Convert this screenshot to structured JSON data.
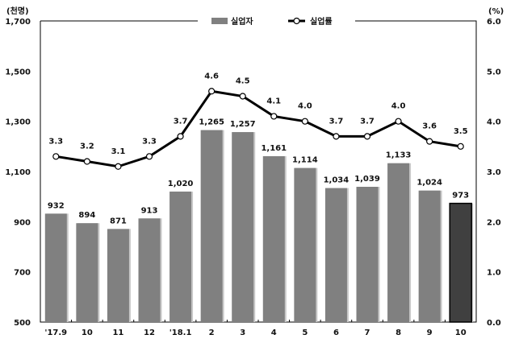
{
  "chart_data": {
    "type": "bar+line",
    "title": "",
    "y_left_unit": "(천명)",
    "y_right_unit": "(%)",
    "categories": [
      "'17.9",
      "10",
      "11",
      "12",
      "'18.1",
      "2",
      "3",
      "4",
      "5",
      "6",
      "7",
      "8",
      "9",
      "10"
    ],
    "series": [
      {
        "name": "실업자",
        "type": "bar",
        "axis": "left",
        "color": "#808080",
        "highlight_last_color": "#404040",
        "values": [
          932,
          894,
          871,
          913,
          1020,
          1265,
          1257,
          1161,
          1114,
          1034,
          1039,
          1133,
          1024,
          973
        ],
        "labels": [
          "932",
          "894",
          "871",
          "913",
          "1,020",
          "1,265",
          "1,257",
          "1,161",
          "1,114",
          "1,034",
          "1,039",
          "1,133",
          "1,024",
          "973"
        ]
      },
      {
        "name": "실업률",
        "type": "line",
        "axis": "right",
        "color": "#000000",
        "values": [
          3.3,
          3.2,
          3.1,
          3.3,
          3.7,
          4.6,
          4.5,
          4.1,
          4.0,
          3.7,
          3.7,
          4.0,
          3.6,
          3.5
        ],
        "labels": [
          "3.3",
          "3.2",
          "3.1",
          "3.3",
          "3.7",
          "4.6",
          "4.5",
          "4.1",
          "4.0",
          "3.7",
          "3.7",
          "4.0",
          "3.6",
          "3.5"
        ]
      }
    ],
    "y_left": {
      "lim": [
        500,
        1700
      ],
      "ticks": [
        "500",
        "700",
        "900",
        "1,100",
        "1,300",
        "1,500",
        "1,700"
      ]
    },
    "y_right": {
      "lim": [
        0,
        6
      ],
      "ticks": [
        "0.0",
        "1.0",
        "2.0",
        "3.0",
        "4.0",
        "5.0",
        "6.0"
      ]
    },
    "legend": "top-center",
    "grid": false
  }
}
